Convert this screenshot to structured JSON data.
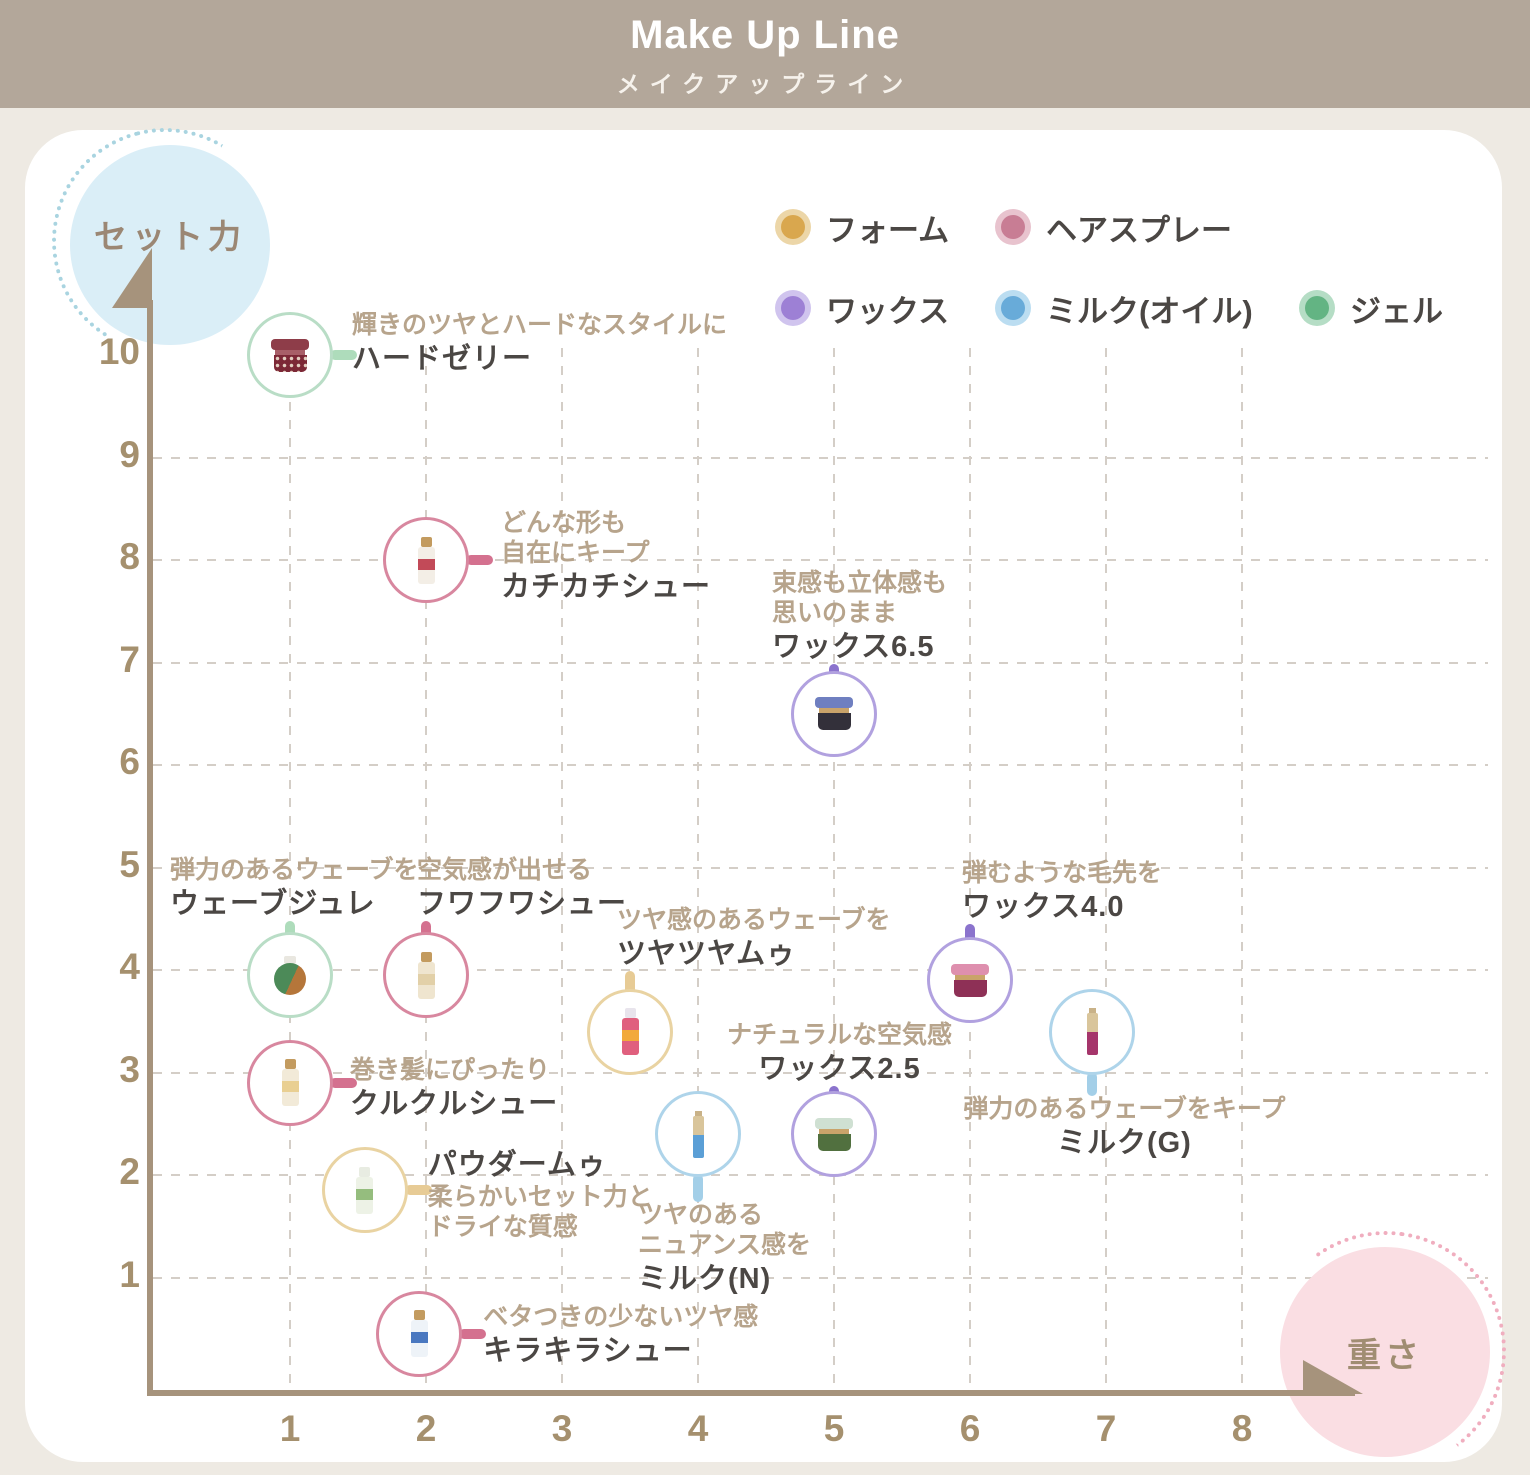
{
  "header": {
    "title": "Make Up Line",
    "subtitle": "メイクアップライン"
  },
  "axes": {
    "y_label": "セット力",
    "x_label": "重さ",
    "y_ticks": [
      "10",
      "9",
      "8",
      "7",
      "6",
      "5",
      "4",
      "3",
      "2",
      "1"
    ],
    "x_ticks": [
      "1",
      "2",
      "3",
      "4",
      "5",
      "6",
      "7",
      "8"
    ]
  },
  "legend": {
    "rows": [
      [
        {
          "label": "フォーム",
          "color": "#d9a74e",
          "halo": "#ecd6a8"
        },
        {
          "label": "ヘアスプレー",
          "color": "#c87d94",
          "halo": "#e8c3ce"
        }
      ],
      [
        {
          "label": "ワックス",
          "color": "#9d80d5",
          "halo": "#d0c4ee"
        },
        {
          "label": "ミルク(オイル)",
          "color": "#68abd9",
          "halo": "#bbddf1"
        },
        {
          "label": "ジェル",
          "color": "#63b483",
          "halo": "#b5ddc5"
        }
      ]
    ]
  },
  "chart_data": {
    "type": "scatter",
    "xlabel": "重さ",
    "ylabel": "セット力",
    "xlim": [
      0,
      8.8
    ],
    "ylim": [
      0,
      10.6
    ],
    "grid": "dashed",
    "legend_position": "top-right",
    "categories": [
      {
        "id": "foam",
        "label": "フォーム",
        "ring": "#e9d3a2",
        "connector": "#e7cb95"
      },
      {
        "id": "spray",
        "label": "ヘアスプレー",
        "ring": "#d8879f",
        "connector": "#d4718f"
      },
      {
        "id": "wax",
        "label": "ワックス",
        "ring": "#b1a1df",
        "connector": "#8b73cd"
      },
      {
        "id": "milk",
        "label": "ミルク(オイル)",
        "ring": "#aed4ea",
        "connector": "#a3cfe8"
      },
      {
        "id": "gel",
        "label": "ジェル",
        "ring": "#b9ddc6",
        "connector": "#aedcbb"
      }
    ],
    "points": [
      {
        "name": "ハードゼリー",
        "desc": [
          "輝きのツヤとハードなスタイルに"
        ],
        "x": 1,
        "y": 10,
        "category": "gel",
        "label_side": "right",
        "label_offset": [
          62,
          -45
        ],
        "icon": {
          "type": "jar",
          "c1": "#8e3d49",
          "c2": "#a85f68",
          "c3": "#7c2836",
          "pattern": "dots"
        }
      },
      {
        "name": "カチカチシュー",
        "desc": [
          "どんな形も",
          "自在にキープ"
        ],
        "x": 2,
        "y": 8,
        "category": "spray",
        "label_side": "right",
        "label_offset": [
          75,
          -52
        ],
        "icon": {
          "type": "bottle",
          "c1": "#c39b5f",
          "c2": "#c24a58",
          "c3": "#f3eee6"
        }
      },
      {
        "name": "ワックス6.5",
        "desc": [
          "束感も立体感も",
          "思いのまま"
        ],
        "x": 5,
        "y": 6.5,
        "category": "wax",
        "label_side": "above",
        "label_offset": [
          -62,
          -146
        ],
        "icon": {
          "type": "jar",
          "c1": "#6f7fc0",
          "c2": "#c9a36a",
          "c3": "#33303a"
        }
      },
      {
        "name": "ウェーブジュレ",
        "desc": [
          "弾力のあるウェーブを"
        ],
        "x": 1,
        "y": 3.95,
        "category": "gel",
        "label_side": "above",
        "label_offset": [
          -120,
          -120
        ],
        "icon": {
          "type": "round",
          "c1": "#e9e7e0",
          "c2": "#b5763a",
          "c3": "#4c8a58"
        }
      },
      {
        "name": "フワフワシュー",
        "desc": [
          "空気感が出せる"
        ],
        "x": 2,
        "y": 3.95,
        "category": "spray",
        "label_side": "above",
        "label_offset": [
          -9,
          -120
        ],
        "icon": {
          "type": "bottle",
          "c1": "#c39b5f",
          "c2": "#e2d0a8",
          "c3": "#efe5cf"
        }
      },
      {
        "name": "ツヤツヤムゥ",
        "desc": [
          "ツヤ感のあるウェーブを"
        ],
        "x": 3.5,
        "y": 3.4,
        "category": "foam",
        "label_side": "above",
        "label_offset": [
          -13,
          -127
        ],
        "icon": {
          "type": "bottle",
          "c1": "#e8e4ec",
          "c2": "#f2a93b",
          "c3": "#e0607e"
        }
      },
      {
        "name": "ワックス4.0",
        "desc": [
          "弾むような毛先を"
        ],
        "x": 6,
        "y": 3.9,
        "category": "wax",
        "label_side": "above",
        "label_offset": [
          -8,
          -122
        ],
        "icon": {
          "type": "jar",
          "c1": "#de8fae",
          "c2": "#c9a36a",
          "c3": "#8e3056"
        }
      },
      {
        "name": "ミルク(G)",
        "desc": [
          "弾力のあるウェーブをキープ"
        ],
        "x": 6.9,
        "y": 3.4,
        "category": "milk",
        "label_side": "below",
        "label_offset": [
          -129,
          62
        ],
        "name_align": "center",
        "icon": {
          "type": "slim",
          "c1": "#d9c59b",
          "c3": "#a5356b"
        }
      },
      {
        "name": "クルクルシュー",
        "desc": [
          "巻き髪にぴったり"
        ],
        "x": 1,
        "y": 2.9,
        "category": "spray",
        "label_side": "right",
        "label_offset": [
          60,
          -28
        ],
        "icon": {
          "type": "bottle",
          "c1": "#c39b5f",
          "c2": "#e9cf92",
          "c3": "#f2ead8"
        }
      },
      {
        "name": "ワックス2.5",
        "desc": [
          "ナチュラルな空気感"
        ],
        "x": 5,
        "y": 2.4,
        "category": "wax",
        "label_side": "above",
        "label_offset": [
          -107,
          -114
        ],
        "name_align": "center",
        "icon": {
          "type": "jar",
          "c1": "#cfe0d2",
          "c2": "#c9a36a",
          "c3": "#51703f"
        }
      },
      {
        "name": "ミルク(N)",
        "desc": [
          "ツヤのある",
          "ニュアンス感を"
        ],
        "x": 4,
        "y": 2.4,
        "category": "milk",
        "label_side": "below",
        "label_offset": [
          -60,
          66
        ],
        "icon": {
          "type": "slim",
          "c1": "#d9c59b",
          "c3": "#5b9fd6"
        }
      },
      {
        "name": "パウダームゥ",
        "desc": [
          "柔らかいセット力と",
          "ドライな質感"
        ],
        "x": 1.55,
        "y": 1.85,
        "category": "foam",
        "label_side": "right",
        "label_offset": [
          63,
          -44
        ],
        "name_first": true,
        "icon": {
          "type": "bottle",
          "c1": "#e8ece2",
          "c2": "#95bd7e",
          "c3": "#edf2e6"
        }
      },
      {
        "name": "キラキラシュー",
        "desc": [
          "ベタつきの少ないツヤ感"
        ],
        "x": 1.95,
        "y": 0.45,
        "category": "spray",
        "label_side": "right",
        "label_offset": [
          64,
          -32
        ],
        "icon": {
          "type": "bottle",
          "c1": "#c39b5f",
          "c2": "#4a78c0",
          "c3": "#eef3f8"
        }
      }
    ]
  }
}
